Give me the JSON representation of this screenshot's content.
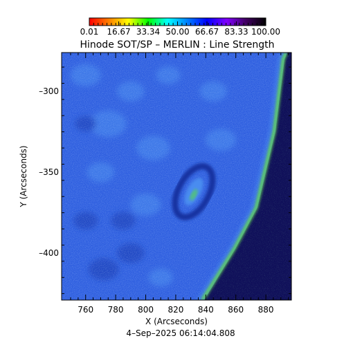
{
  "chart_data": {
    "type": "heatmap",
    "title": "Hinode SOT/SP – MERLIN : Line Strength",
    "xlabel": "X (Arcseconds)",
    "ylabel": "Y (Arcseconds)",
    "footer": "4–Sep–2025 06:14:04.808",
    "xlim": [
      744,
      897
    ],
    "ylim": [
      -429,
      -276
    ],
    "x_ticks": [
      760,
      780,
      800,
      820,
      840,
      860,
      880
    ],
    "y_ticks": [
      -300,
      -350,
      -400
    ],
    "x_tick_labels": [
      "760",
      "780",
      "800",
      "820",
      "840",
      "860",
      "880"
    ],
    "y_tick_labels": [
      "–300",
      "–350",
      "–400"
    ],
    "colorbar": {
      "colormap": "rainbow (red–yellow–green–cyan–blue–purple–black)",
      "range": [
        0.01,
        100.0
      ],
      "tick_labels": [
        "0.01",
        "16.67",
        "33.34",
        "50.00",
        "66.67",
        "83.33",
        "100.00"
      ],
      "stops": [
        "#ff0000",
        "#ff8000",
        "#ffff00",
        "#00ff00",
        "#00ffff",
        "#0080ff",
        "#0000ff",
        "#8000ff",
        "#400060",
        "#000000"
      ]
    },
    "image_colors": {
      "disk_base": "#2f5fe0",
      "disk_light": "#4a8cf0",
      "disk_dark": "#1838b0",
      "limb": "#66dd55",
      "offlimb": "#10105a",
      "sunspot_ring": "#1830a0",
      "sunspot_core": "#55cc66"
    }
  }
}
